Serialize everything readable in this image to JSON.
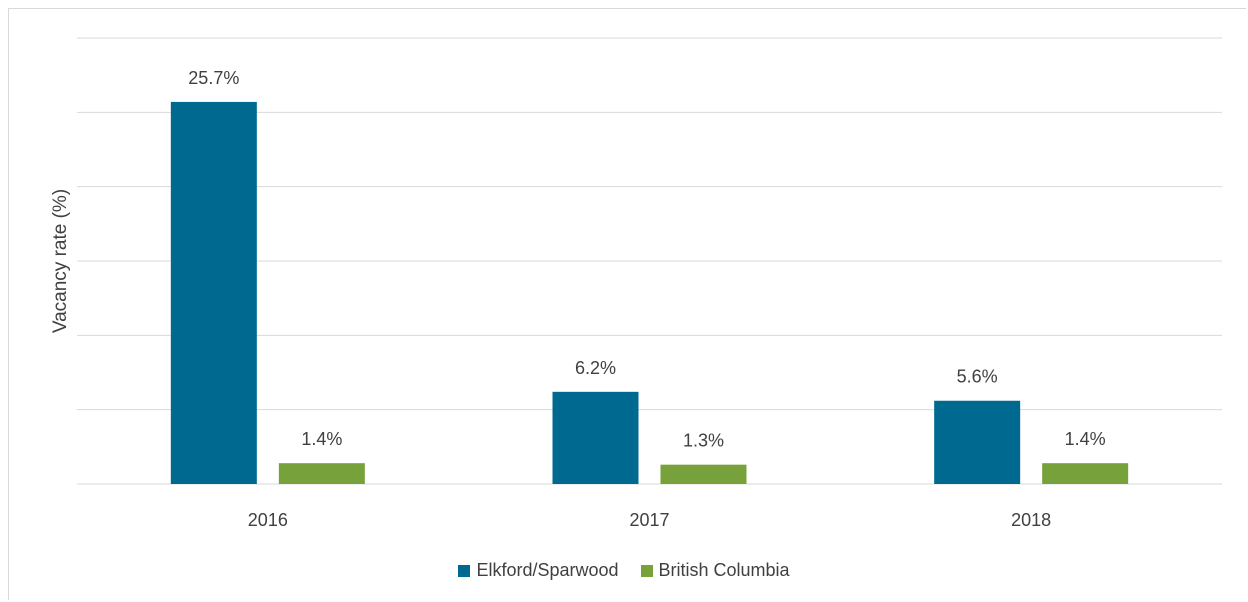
{
  "chart_data": {
    "type": "bar",
    "title": "",
    "xlabel": "",
    "ylabel": "Vacancy rate (%)",
    "categories": [
      "2016",
      "2017",
      "2018"
    ],
    "series": [
      {
        "name": "Elkford/Sparwood",
        "color": "#006990",
        "values": [
          25.7,
          6.2,
          5.6
        ],
        "labels": [
          "25.7%",
          "6.2%",
          "5.6%"
        ]
      },
      {
        "name": "British Columbia",
        "color": "#77a13a",
        "values": [
          1.4,
          1.3,
          1.4
        ],
        "labels": [
          "1.4%",
          "1.3%",
          "1.4%"
        ]
      }
    ],
    "ylim": [
      0,
      30
    ],
    "grid": true,
    "y_tick_labels_shown": false,
    "legend_position": "bottom"
  }
}
